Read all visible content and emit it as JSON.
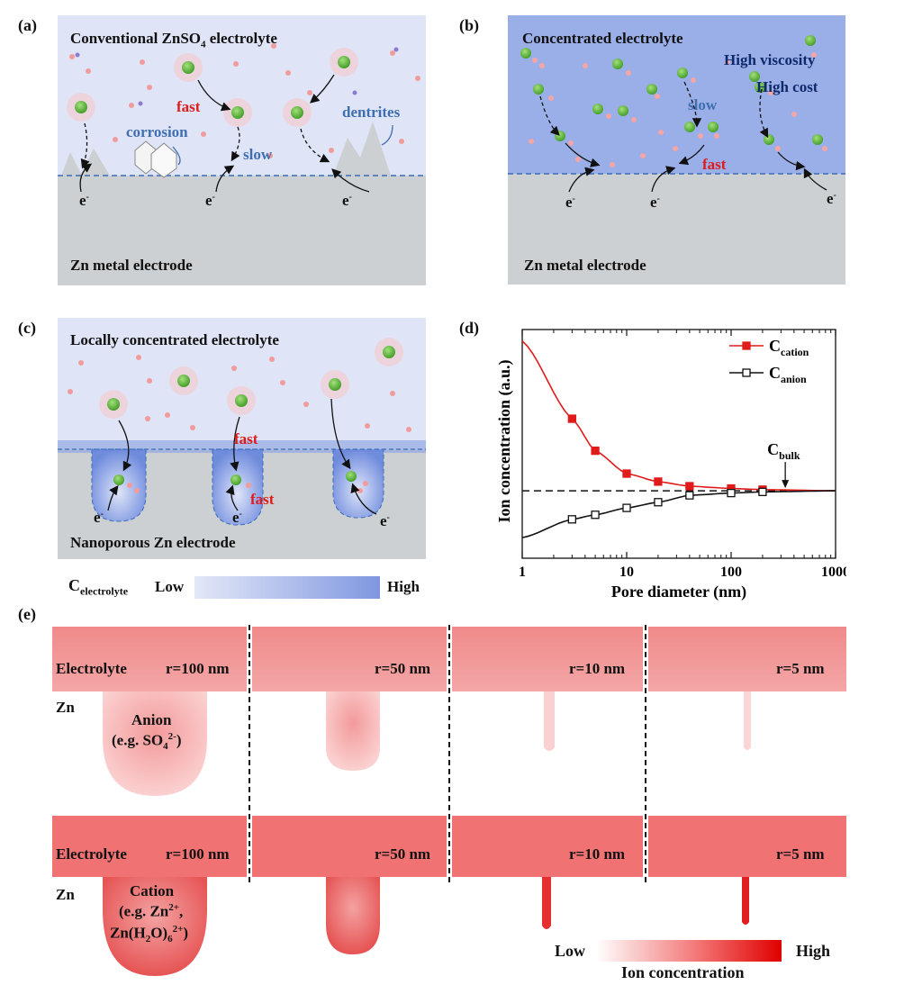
{
  "panel_labels": {
    "a": "(a)",
    "b": "(b)",
    "c": "(c)",
    "d": "(d)",
    "e": "(e)"
  },
  "panel_a": {
    "title": "Conventional ZnSO",
    "title_sub": "4",
    "title_tail": " electrolyte",
    "fast": "fast",
    "slow": "slow",
    "corrosion": "corrosion",
    "dentrites": "dentrites",
    "electron": "e",
    "electron_sup": "-",
    "electrode": "Zn metal electrode"
  },
  "panel_b": {
    "title": "Concentrated electrolyte",
    "high_viscosity": "High viscosity",
    "high_cost": "High cost",
    "slow": "slow",
    "fast": "fast",
    "electron": "e",
    "electron_sup": "-",
    "electrode": "Zn metal electrode"
  },
  "panel_c": {
    "title": "Locally concentrated electrolyte",
    "fast1": "fast",
    "fast2": "fast",
    "electron": "e",
    "electron_sup": "-",
    "electrode": "Nanoporous Zn electrode",
    "legend_label": "C",
    "legend_sub": "electrolyte",
    "legend_low": "Low",
    "legend_high": "High"
  },
  "colors": {
    "electrolyte_light": "#dfe4f7",
    "electrolyte_concentrated": "#9aaee8",
    "electrode_grey": "#cdd0d3",
    "cation_red": "#e01b1b",
    "zn_green": "#5db33a",
    "conc_red": "#f05a5a"
  },
  "chart_data": {
    "type": "line",
    "title": "",
    "xlabel": "Pore diameter (nm)",
    "ylabel": "Ion concentration (a.u.)",
    "xscale": "log",
    "xlim": [
      1,
      1000
    ],
    "ylim": [
      0,
      1
    ],
    "xticks": [
      "1",
      "10",
      "100",
      "1000"
    ],
    "series": [
      {
        "name": "C",
        "sub": "cation",
        "color": "#e01b1b",
        "marker": "filled-square",
        "x": [
          3,
          5,
          10,
          20,
          40,
          100,
          200
        ],
        "y": [
          0.61,
          0.47,
          0.37,
          0.335,
          0.315,
          0.305,
          0.3
        ]
      },
      {
        "name": "C",
        "sub": "anion",
        "color": "#111111",
        "marker": "open-square",
        "x": [
          3,
          5,
          10,
          20,
          40,
          100,
          200
        ],
        "y": [
          0.17,
          0.19,
          0.22,
          0.245,
          0.275,
          0.285,
          0.29
        ]
      }
    ],
    "bulk_level": 0.295,
    "bulk_label": "C",
    "bulk_sub": "bulk"
  },
  "panel_e": {
    "electrolyte": "Electrolyte",
    "zn": "Zn",
    "radii": [
      "r=100 nm",
      "r=50 nm",
      "r=10 nm",
      "r=5 nm"
    ],
    "anion_label": "Anion",
    "anion_example": "(e.g. SO",
    "anion_sub": "4",
    "anion_sup": "2-",
    "anion_tail": ")",
    "cation_label": "Cation",
    "cation_example": "(e.g. Zn",
    "cation_sup": "2+",
    "cation_tail": ",",
    "cation_example2": "Zn(H",
    "cation_sub2": "2",
    "cation_mid": "O)",
    "cation_sub6": "6",
    "cation_sup2": "2+",
    "cation_tail2": ")",
    "legend_low": "Low",
    "legend_high": "High",
    "legend_title": "Ion concentration"
  }
}
